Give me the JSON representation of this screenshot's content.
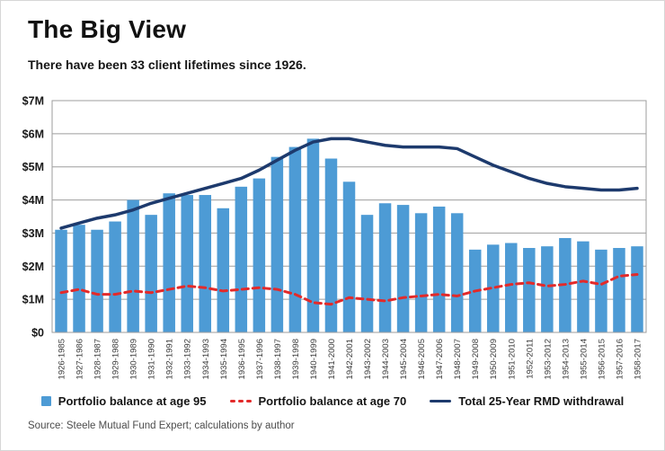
{
  "chart_data": {
    "type": "bar",
    "title": "The Big View",
    "subtitle": "There have been 33 client lifetimes since 1926.",
    "xlabel": "",
    "ylabel": "",
    "ylim": [
      0,
      7
    ],
    "grid": true,
    "legend_position": "bottom",
    "y_ticks": [
      {
        "label": "$0",
        "value": 0
      },
      {
        "label": "$1M",
        "value": 1
      },
      {
        "label": "$2M",
        "value": 2
      },
      {
        "label": "$3M",
        "value": 3
      },
      {
        "label": "$4M",
        "value": 4
      },
      {
        "label": "$5M",
        "value": 5
      },
      {
        "label": "$6M",
        "value": 6
      },
      {
        "label": "$7M",
        "value": 7
      }
    ],
    "categories": [
      "1926-1985",
      "1927-1986",
      "1928-1987",
      "1929-1988",
      "1930-1989",
      "1931-1990",
      "1932-1991",
      "1933-1992",
      "1934-1993",
      "1935-1994",
      "1936-1995",
      "1937-1996",
      "1938-1997",
      "1939-1998",
      "1940-1999",
      "1941-2000",
      "1942-2001",
      "1943-2002",
      "1944-2003",
      "1945-2004",
      "1946-2005",
      "1947-2006",
      "1948-2007",
      "1949-2008",
      "1950-2009",
      "1951-2010",
      "1952-2011",
      "1953-2012",
      "1954-2013",
      "1955-2014",
      "1956-2015",
      "1957-2016",
      "1958-2017"
    ],
    "series": [
      {
        "name": "Portfolio balance at age 95",
        "type": "bar",
        "color": "#4D9BD5",
        "values": [
          3.1,
          3.25,
          3.1,
          3.35,
          4.0,
          3.55,
          4.2,
          4.15,
          4.15,
          3.75,
          4.4,
          4.65,
          5.3,
          5.6,
          5.85,
          5.25,
          4.55,
          3.55,
          3.9,
          3.85,
          3.6,
          3.8,
          3.6,
          2.5,
          2.65,
          2.7,
          2.55,
          2.6,
          2.85,
          2.75,
          2.5,
          2.55,
          2.6
        ]
      },
      {
        "name": "Portfolio balance at age 70",
        "type": "line-dashed",
        "color": "#E32A2A",
        "values": [
          1.2,
          1.3,
          1.15,
          1.15,
          1.25,
          1.2,
          1.3,
          1.4,
          1.35,
          1.25,
          1.3,
          1.35,
          1.3,
          1.15,
          0.9,
          0.85,
          1.05,
          1.0,
          0.95,
          1.05,
          1.1,
          1.15,
          1.1,
          1.25,
          1.35,
          1.45,
          1.5,
          1.4,
          1.45,
          1.55,
          1.45,
          1.7,
          1.75
        ]
      },
      {
        "name": "Total 25-Year RMD withdrawal",
        "type": "line",
        "color": "#1D3A6D",
        "values": [
          3.15,
          3.3,
          3.45,
          3.55,
          3.7,
          3.9,
          4.05,
          4.2,
          4.35,
          4.5,
          4.65,
          4.9,
          5.2,
          5.5,
          5.75,
          5.85,
          5.85,
          5.75,
          5.65,
          5.6,
          5.6,
          5.6,
          5.55,
          5.3,
          5.05,
          4.85,
          4.65,
          4.5,
          4.4,
          4.35,
          4.3,
          4.3,
          4.35
        ]
      }
    ],
    "colors": {
      "grid": "#9e9e9e"
    }
  },
  "footer": {
    "source": "Source: Steele Mutual Fund Expert; calculations by author"
  }
}
